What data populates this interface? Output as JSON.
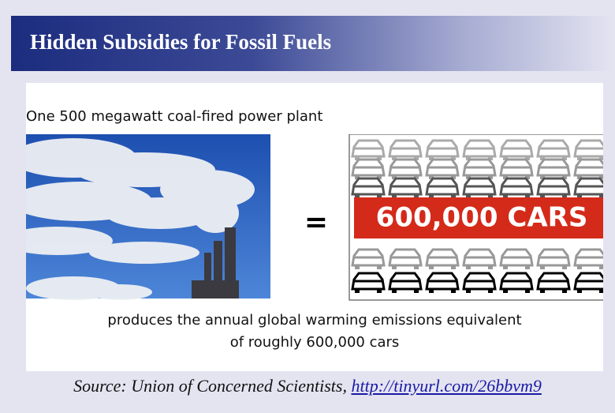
{
  "header": {
    "title": "Hidden Subsidies for Fossil Fuels"
  },
  "figure": {
    "intro": "One 500 megawatt coal-fired power plant",
    "equals": "=",
    "banner": "600,000 CARS",
    "caption": [
      "produces the annual global warming emissions equivalent",
      "of roughly 600,000 cars"
    ]
  },
  "source": {
    "text": "Source: Union of Concerned Scientists, ",
    "link": "http://tinyurl.com/26bbvm9"
  }
}
